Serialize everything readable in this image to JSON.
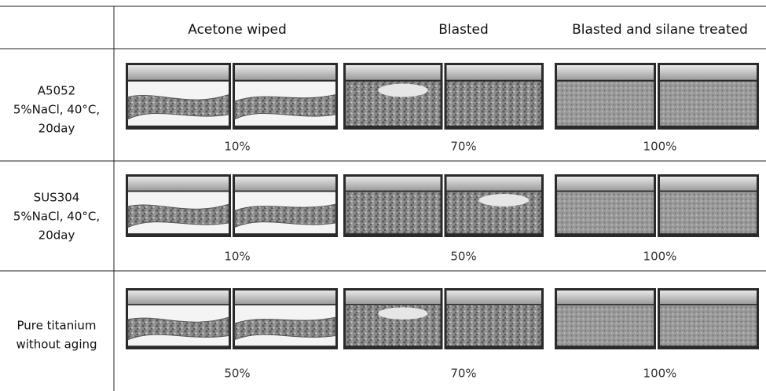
{
  "table": {
    "columns": [
      "Acetone wiped",
      "Blasted",
      "Blasted and silane treated"
    ],
    "rows": [
      {
        "label": [
          "A5052",
          "5%NaCl, 40°C,",
          "20day"
        ],
        "cells": [
          "10%",
          "70%",
          "100%"
        ]
      },
      {
        "label": [
          "SUS304",
          "5%NaCl, 40°C,",
          "20day"
        ],
        "cells": [
          "10%",
          "50%",
          "100%"
        ]
      },
      {
        "label": [
          "Pure titanium",
          "without aging"
        ],
        "cells": [
          "50%",
          "70%",
          "100%"
        ]
      }
    ]
  }
}
